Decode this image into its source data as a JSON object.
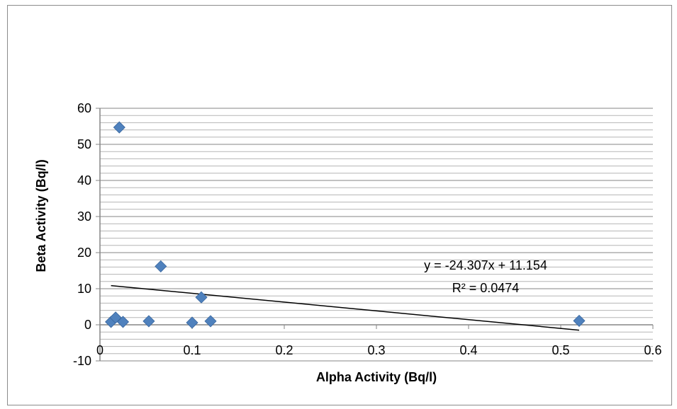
{
  "chart_data": {
    "type": "scatter",
    "title": "",
    "xlabel": "Alpha Activity (Bq/l)",
    "ylabel": "Beta Activity (Bq/l)",
    "xlim": [
      0,
      0.6
    ],
    "ylim": [
      -10,
      60
    ],
    "x_ticks": [
      0,
      0.1,
      0.2,
      0.3,
      0.4,
      0.5,
      0.6
    ],
    "x_tick_labels": [
      "0",
      "0.1",
      "0.2",
      "0.3",
      "0.4",
      "0.5",
      "0.6"
    ],
    "y_ticks": [
      -10,
      0,
      10,
      20,
      30,
      40,
      50,
      60
    ],
    "y_tick_labels": [
      "-10",
      "0",
      "10",
      "20",
      "30",
      "40",
      "50",
      "60"
    ],
    "grid": true,
    "legend": "none",
    "marker": "diamond",
    "marker_color": "#4f81bd",
    "points": [
      {
        "x": 0.012,
        "y": 0.8
      },
      {
        "x": 0.017,
        "y": 2.0
      },
      {
        "x": 0.021,
        "y": 54.7
      },
      {
        "x": 0.025,
        "y": 0.8
      },
      {
        "x": 0.053,
        "y": 1.0
      },
      {
        "x": 0.066,
        "y": 16.2
      },
      {
        "x": 0.1,
        "y": 0.6
      },
      {
        "x": 0.11,
        "y": 7.6
      },
      {
        "x": 0.12,
        "y": 1.0
      },
      {
        "x": 0.52,
        "y": 1.1
      }
    ],
    "trendline": {
      "type": "linear",
      "slope": -24.307,
      "intercept": 11.154,
      "x_range": [
        0.012,
        0.52
      ],
      "color": "#000000",
      "equation_label": "y = -24.307x + 11.154",
      "r2_label": "R² = 0.0474"
    }
  }
}
